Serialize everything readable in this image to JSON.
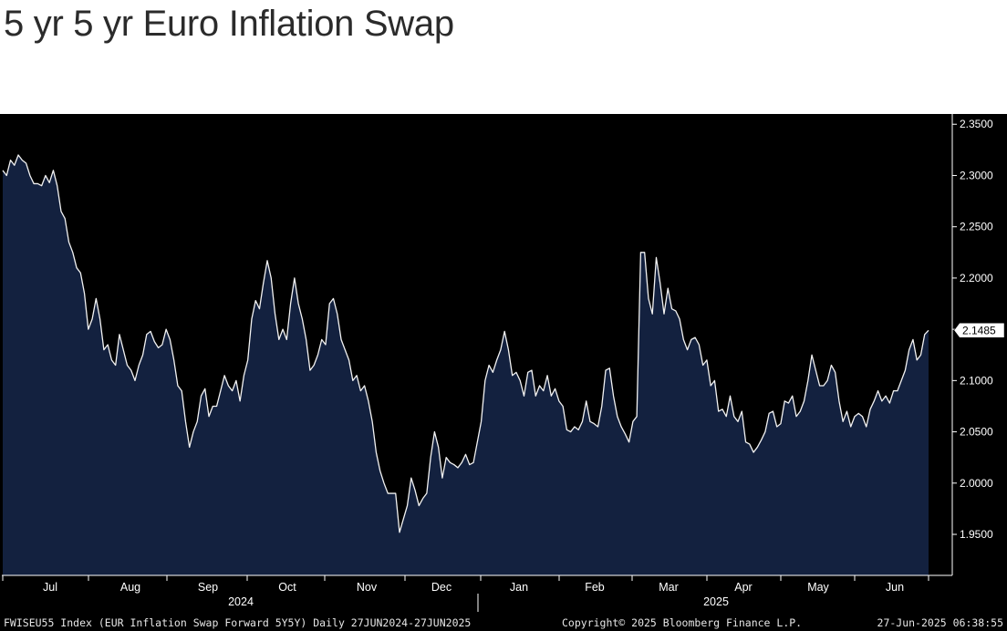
{
  "header": {
    "title": "5 yr 5 yr Euro Inflation Swap"
  },
  "footer": {
    "left": "FWISEU55 Index (EUR Inflation Swap Forward 5Y5Y)  Daily 27JUN2024-27JUN2025",
    "copyright": "Copyright© 2025 Bloomberg Finance L.P.",
    "timestamp": "27-Jun-2025 06:38:55"
  },
  "chart_data": {
    "type": "area",
    "title": "",
    "xlabel": "",
    "ylabel": "",
    "ylim": [
      1.91,
      2.36
    ],
    "y_axis_position": "right",
    "y_ticks": [
      "2.3500",
      "2.3000",
      "2.2500",
      "2.2000",
      "2.1500",
      "2.1000",
      "2.0500",
      "2.0000",
      "1.9500"
    ],
    "y_tick_values": [
      2.35,
      2.3,
      2.25,
      2.2,
      2.15,
      2.1,
      2.05,
      2.0,
      1.95
    ],
    "x_month_labels": [
      "Jul",
      "Aug",
      "Sep",
      "Oct",
      "Nov",
      "Dec",
      "Jan",
      "Feb",
      "Mar",
      "Apr",
      "May",
      "Jun"
    ],
    "x_year_labels": [
      "2024",
      "2025"
    ],
    "last_value_label": "2.1485",
    "colors": {
      "background": "#000000",
      "fill": "#13213f",
      "line": "#f2f2f2",
      "axis": "#ffffff"
    },
    "grid": false,
    "series": [
      {
        "values": [
          2.305,
          2.3,
          2.315,
          2.31,
          2.32,
          2.315,
          2.312,
          2.3,
          2.292,
          2.292,
          2.29,
          2.3,
          2.293,
          2.305,
          2.29,
          2.265,
          2.258,
          2.235,
          2.225,
          2.21,
          2.205,
          2.185,
          2.15,
          2.16,
          2.18,
          2.16,
          2.13,
          2.135,
          2.12,
          2.115,
          2.145,
          2.13,
          2.115,
          2.11,
          2.1,
          2.115,
          2.125,
          2.145,
          2.148,
          2.138,
          2.132,
          2.135,
          2.15,
          2.14,
          2.12,
          2.095,
          2.09,
          2.06,
          2.035,
          2.05,
          2.06,
          2.085,
          2.092,
          2.065,
          2.075,
          2.075,
          2.09,
          2.105,
          2.095,
          2.09,
          2.1,
          2.08,
          2.105,
          2.12,
          2.16,
          2.178,
          2.17,
          2.195,
          2.217,
          2.2,
          2.165,
          2.14,
          2.15,
          2.14,
          2.175,
          2.2,
          2.175,
          2.16,
          2.14,
          2.11,
          2.115,
          2.125,
          2.14,
          2.135,
          2.175,
          2.18,
          2.165,
          2.14,
          2.13,
          2.12,
          2.1,
          2.105,
          2.09,
          2.095,
          2.08,
          2.06,
          2.03,
          2.012,
          2.0,
          1.99,
          1.99,
          1.99,
          1.952,
          1.965,
          1.978,
          2.005,
          1.993,
          1.978,
          1.985,
          1.99,
          2.025,
          2.05,
          2.035,
          2.005,
          2.025,
          2.02,
          2.018,
          2.015,
          2.02,
          2.028,
          2.018,
          2.02,
          2.04,
          2.06,
          2.1,
          2.115,
          2.108,
          2.12,
          2.13,
          2.148,
          2.13,
          2.105,
          2.108,
          2.1,
          2.085,
          2.108,
          2.11,
          2.085,
          2.095,
          2.09,
          2.105,
          2.085,
          2.092,
          2.08,
          2.075,
          2.052,
          2.05,
          2.055,
          2.052,
          2.06,
          2.08,
          2.06,
          2.058,
          2.055,
          2.075,
          2.11,
          2.112,
          2.085,
          2.065,
          2.055,
          2.048,
          2.04,
          2.06,
          2.065,
          2.225,
          2.225,
          2.18,
          2.165,
          2.22,
          2.195,
          2.165,
          2.19,
          2.17,
          2.168,
          2.16,
          2.14,
          2.13,
          2.14,
          2.142,
          2.135,
          2.115,
          2.12,
          2.095,
          2.1,
          2.07,
          2.072,
          2.065,
          2.085,
          2.065,
          2.06,
          2.07,
          2.04,
          2.038,
          2.03,
          2.035,
          2.042,
          2.05,
          2.068,
          2.07,
          2.055,
          2.058,
          2.08,
          2.078,
          2.085,
          2.065,
          2.07,
          2.08,
          2.1,
          2.125,
          2.11,
          2.095,
          2.095,
          2.1,
          2.115,
          2.108,
          2.08,
          2.06,
          2.07,
          2.055,
          2.065,
          2.068,
          2.065,
          2.055,
          2.072,
          2.08,
          2.09,
          2.08,
          2.085,
          2.078,
          2.09,
          2.09,
          2.1,
          2.11,
          2.13,
          2.14,
          2.12,
          2.125,
          2.145,
          2.149
        ]
      }
    ]
  }
}
